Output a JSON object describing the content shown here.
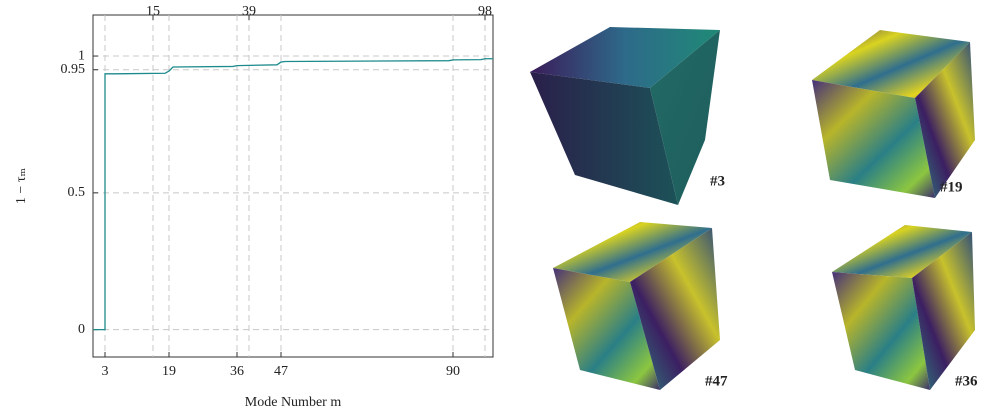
{
  "chart_data": {
    "type": "line",
    "xlabel": "Mode Number m",
    "ylabel": "1 − τₘ",
    "x": [
      0,
      3,
      3,
      5,
      18,
      19,
      20,
      35,
      36,
      46,
      47,
      48,
      89,
      90,
      97,
      98,
      100
    ],
    "values": [
      0,
      0,
      0.935,
      0.935,
      0.937,
      0.945,
      0.96,
      0.962,
      0.965,
      0.968,
      0.978,
      0.98,
      0.983,
      0.986,
      0.987,
      0.99,
      0.99
    ],
    "color": "#1d8a8c",
    "xlim": [
      0,
      100
    ],
    "ylim": [
      -0.1,
      1.15
    ],
    "xticks": [
      3,
      19,
      36,
      47,
      90
    ],
    "x2ticks": [
      15,
      39,
      98
    ],
    "yticks": [
      0,
      0.5,
      0.95,
      1
    ],
    "grid": true
  },
  "renderings": [
    {
      "label": "#3"
    },
    {
      "label": "#19"
    },
    {
      "label": "#47"
    },
    {
      "label": "#36"
    }
  ]
}
